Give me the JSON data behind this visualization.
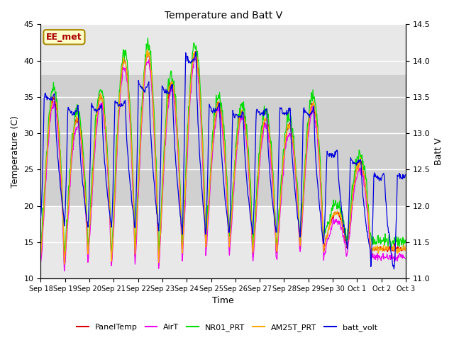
{
  "title": "Temperature and Batt V",
  "xlabel": "Time",
  "ylabel_left": "Temperature (C)",
  "ylabel_right": "Batt V",
  "ylim_left": [
    10,
    45
  ],
  "ylim_right": [
    11.0,
    14.5
  ],
  "shaded_region": [
    20,
    38
  ],
  "annotation_text": "EE_met",
  "x_tick_labels": [
    "Sep 18",
    "Sep 19",
    "Sep 20",
    "Sep 21",
    "Sep 22",
    "Sep 23",
    "Sep 24",
    "Sep 25",
    "Sep 26",
    "Sep 27",
    "Sep 28",
    "Sep 29",
    "Sep 30",
    "Oct 1",
    "Oct 2",
    "Oct 3"
  ],
  "legend_entries": [
    {
      "label": "PanelTemp",
      "color": "#dd0000"
    },
    {
      "label": "AirT",
      "color": "#ee00ee"
    },
    {
      "label": "NR01_PRT",
      "color": "#00dd00"
    },
    {
      "label": "AM25T_PRT",
      "color": "#ffaa00"
    },
    {
      "label": "batt_volt",
      "color": "#0000dd"
    }
  ],
  "background_color": "#ffffff",
  "plot_bg_color": "#e8e8e8",
  "shaded_color": "#d0d0d0",
  "grid_color": "#ffffff",
  "yticks_left": [
    10,
    15,
    20,
    25,
    30,
    35,
    40,
    45
  ],
  "yticks_right": [
    11.0,
    11.5,
    12.0,
    12.5,
    13.0,
    13.5,
    14.0,
    14.5
  ],
  "peak_temps": [
    35,
    32,
    35,
    40,
    41,
    37,
    41,
    34,
    33,
    32,
    31,
    34,
    19,
    26,
    14
  ],
  "min_temps": [
    13,
    12,
    13,
    12,
    13,
    12,
    13,
    14,
    14,
    13,
    13,
    14,
    14,
    14,
    14
  ],
  "batt_peaks": [
    13.55,
    13.35,
    13.4,
    13.45,
    13.7,
    13.65,
    14.1,
    13.4,
    13.3,
    13.35,
    13.35,
    13.35,
    12.75,
    12.65,
    12.45
  ],
  "batt_mins": [
    11.8,
    11.7,
    11.7,
    11.7,
    11.7,
    11.65,
    11.6,
    11.6,
    11.6,
    11.6,
    11.6,
    11.5,
    11.45,
    11.35,
    11.1
  ],
  "n_days": 15.5,
  "pts_per_day": 48,
  "line_width": 0.9,
  "title_fontsize": 10,
  "axis_label_fontsize": 9,
  "tick_fontsize": 8,
  "annotation_fontsize": 9,
  "legend_fontsize": 8
}
